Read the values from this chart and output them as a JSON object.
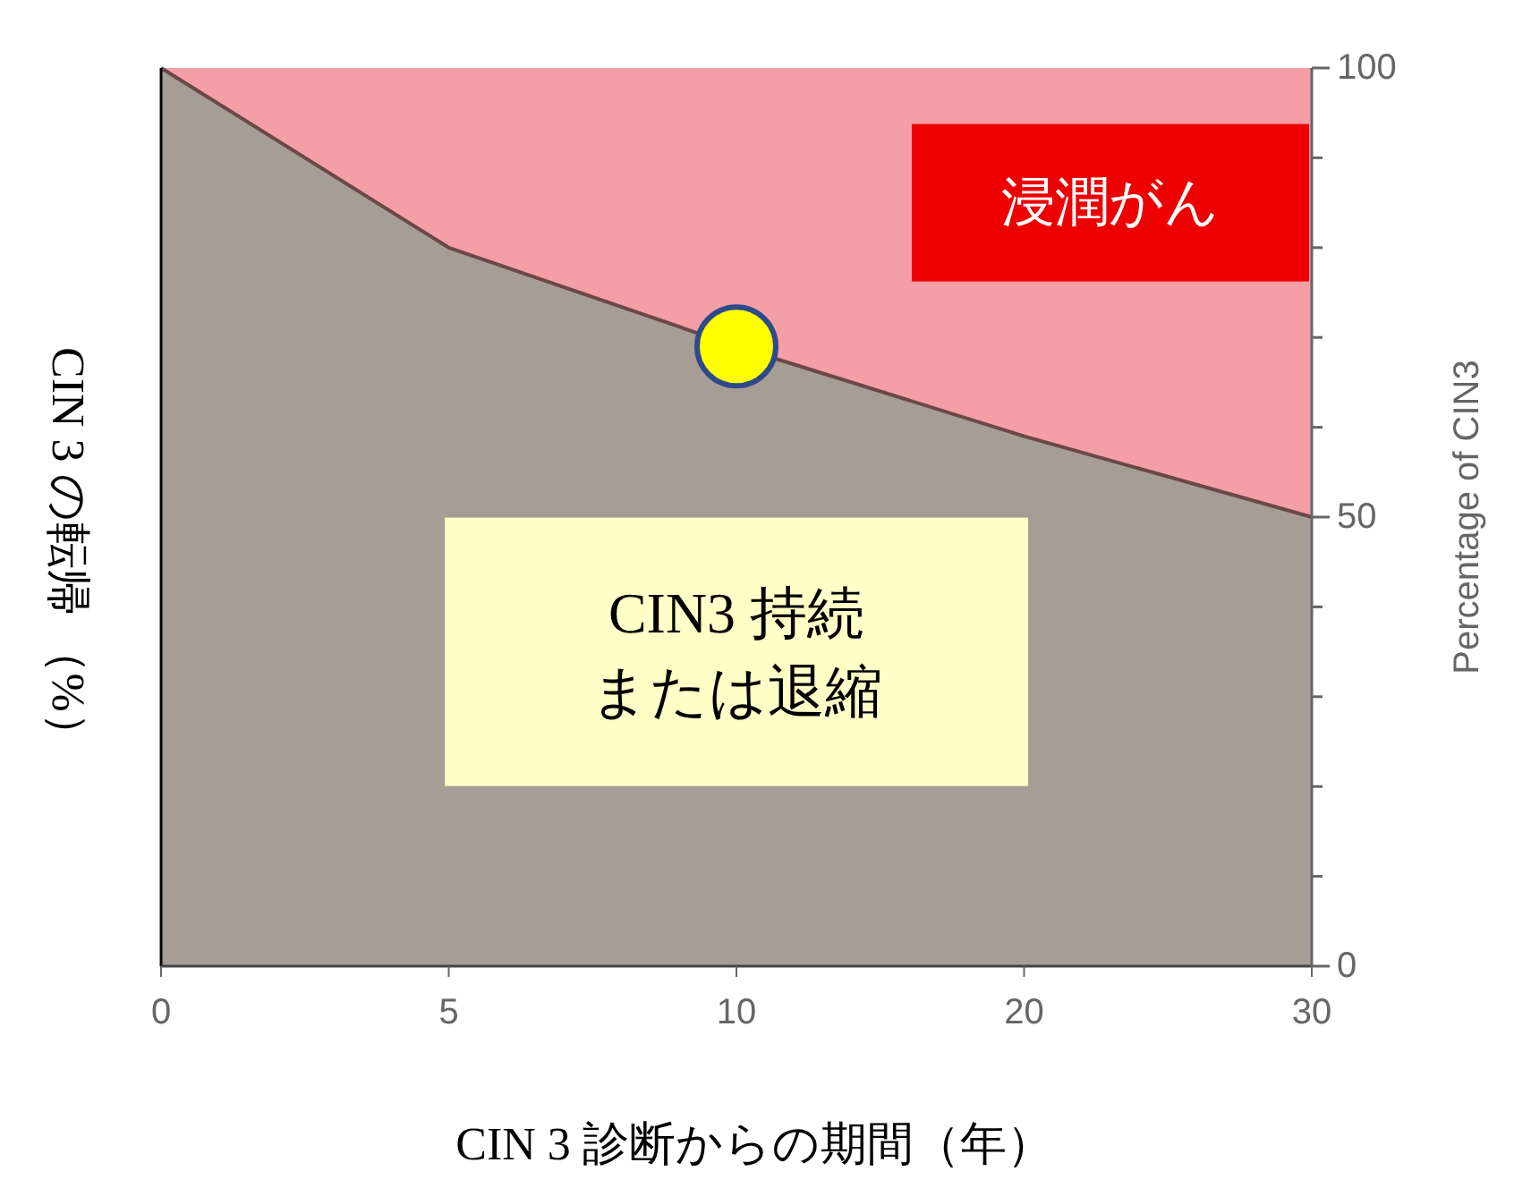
{
  "chart_data": {
    "type": "area",
    "stacked": true,
    "xlabel": "CIN 3 診断からの期間（年）",
    "ylabel": "CIN 3 の転帰 （%）",
    "y2label": "Percentage of CIN3",
    "categories": [
      "0",
      "5",
      "10",
      "20",
      "30"
    ],
    "y2lim": [
      0,
      100
    ],
    "y2ticks": [
      0,
      {
        "value": 10,
        "label": null
      },
      {
        "value": 20,
        "label": null
      },
      {
        "value": 30,
        "label": null
      },
      {
        "value": 40,
        "label": null
      },
      50,
      {
        "value": 60,
        "label": null
      },
      {
        "value": 70,
        "label": null
      },
      {
        "value": 80,
        "label": null
      },
      {
        "value": 90,
        "label": null
      },
      100
    ],
    "series": [
      {
        "name": "CIN3 持続または退縮",
        "color": "#a69d95",
        "axis": "y2",
        "values": [
          100,
          80,
          69,
          59,
          50
        ]
      },
      {
        "name": "浸潤がん",
        "color": "#f49ea6",
        "axis": "y2",
        "values": [
          0,
          20,
          31,
          41,
          50
        ]
      },
      {
        "type": "scatter",
        "color": "#ffff00",
        "axis": "y2",
        "x": [
          "10"
        ],
        "values": [
          69
        ],
        "marker": "circle"
      }
    ],
    "grid": false,
    "legend": false
  }
}
